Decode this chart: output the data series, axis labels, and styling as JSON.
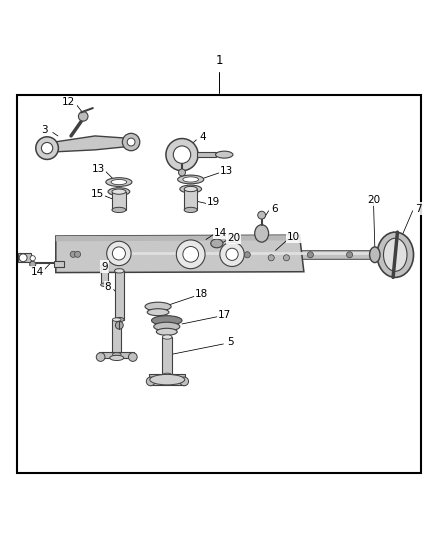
{
  "bg_color": "#ffffff",
  "border_color": "#000000",
  "line_color": "#404040",
  "part_fill": "#cccccc",
  "fig_width": 4.38,
  "fig_height": 5.33,
  "dpi": 100
}
